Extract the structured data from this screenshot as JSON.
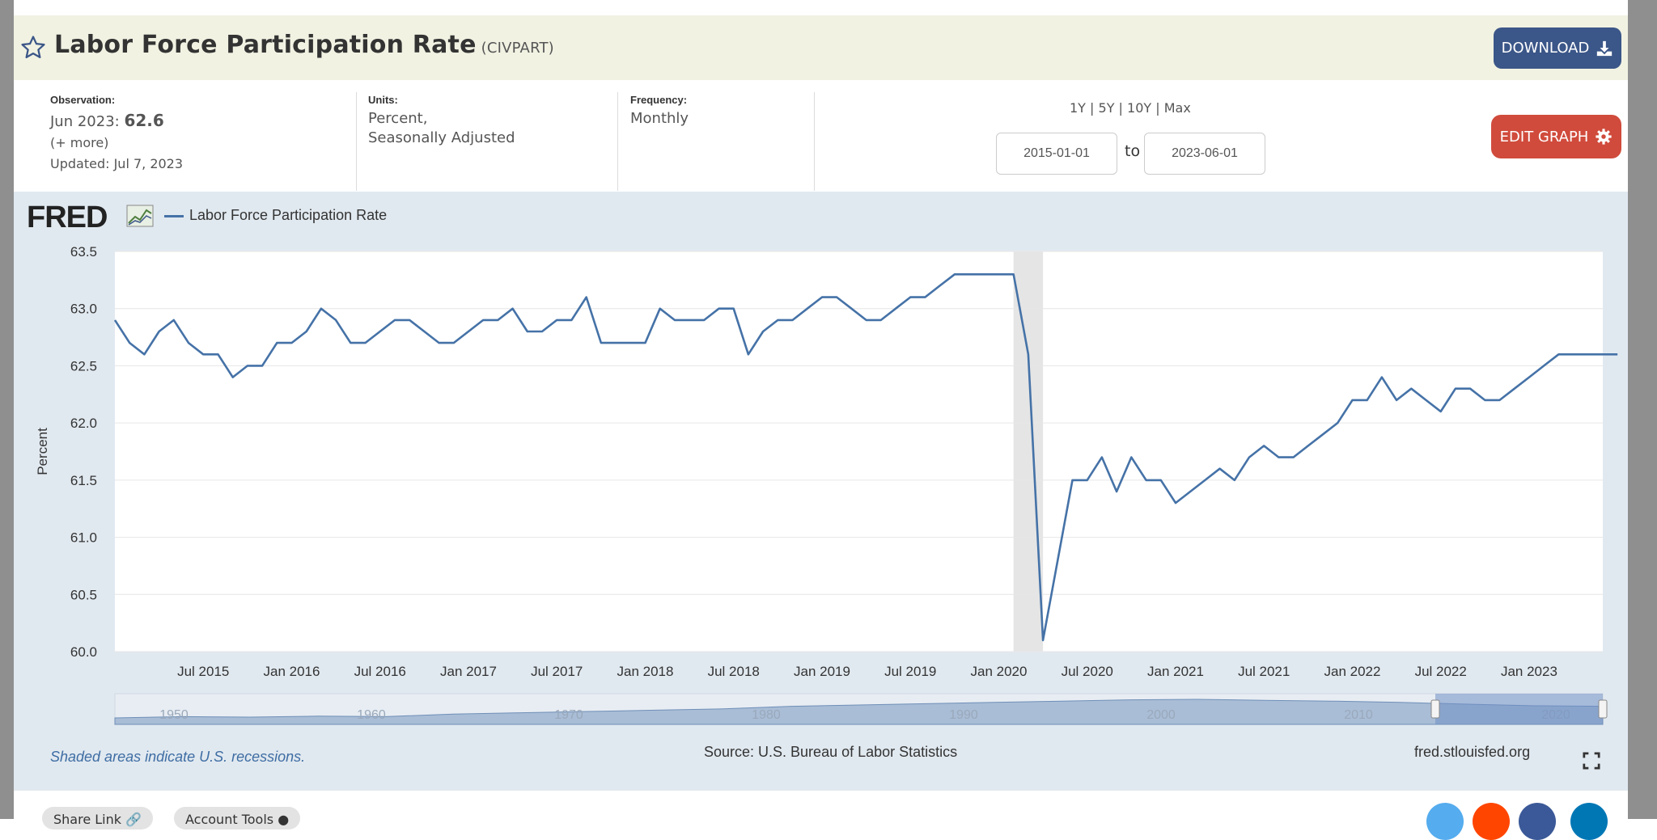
{
  "header": {
    "title": "Labor Force Participation Rate",
    "series_id": "(CIVPART)",
    "download_label": "DOWNLOAD"
  },
  "meta": {
    "observation_label": "Observation:",
    "observation_date": "Jun 2023:",
    "observation_value": "62.6",
    "more_link": "(+ more)",
    "updated": "Updated: Jul 7, 2023",
    "units_label": "Units:",
    "units_line1": "Percent,",
    "units_line2": "Seasonally Adjusted",
    "frequency_label": "Frequency:",
    "frequency_value": "Monthly"
  },
  "range": {
    "links": "1Y | 5Y | 10Y | Max",
    "start_date": "2015-01-01",
    "to_label": "to",
    "end_date": "2023-06-01",
    "edit_label": "EDIT GRAPH"
  },
  "colors": {
    "line": "#4572a7",
    "recession": "#e5e5e5",
    "download_button": "#3b5688",
    "edit_button": "#d04b3c",
    "panel": "#e1e9f0"
  },
  "chart_data": {
    "type": "line",
    "legend": [
      "Labor Force Participation Rate"
    ],
    "ylabel": "Percent",
    "ylim": [
      60.0,
      63.5
    ],
    "yticks": [
      "63.5",
      "63.0",
      "62.5",
      "62.0",
      "61.5",
      "61.0",
      "60.5",
      "60.0"
    ],
    "xlim": [
      "2015-01",
      "2023-06"
    ],
    "xticks": [
      "Jul 2015",
      "Jan 2016",
      "Jul 2016",
      "Jan 2017",
      "Jul 2017",
      "Jan 2018",
      "Jul 2018",
      "Jan 2019",
      "Jul 2019",
      "Jan 2020",
      "Jul 2020",
      "Jan 2021",
      "Jul 2021",
      "Jan 2022",
      "Jul 2022",
      "Jan 2023"
    ],
    "recession": [
      "2020-02",
      "2020-04"
    ],
    "start": "2015-01",
    "series": [
      {
        "name": "Labor Force Participation Rate",
        "values": [
          62.9,
          62.7,
          62.6,
          62.8,
          62.9,
          62.7,
          62.6,
          62.6,
          62.4,
          62.5,
          62.5,
          62.7,
          62.7,
          62.8,
          63.0,
          62.9,
          62.7,
          62.7,
          62.8,
          62.9,
          62.9,
          62.8,
          62.7,
          62.7,
          62.8,
          62.9,
          62.9,
          63.0,
          62.8,
          62.8,
          62.9,
          62.9,
          63.1,
          62.7,
          62.7,
          62.7,
          62.7,
          63.0,
          62.9,
          62.9,
          62.9,
          63.0,
          63.0,
          62.6,
          62.8,
          62.9,
          62.9,
          63.0,
          63.1,
          63.1,
          63.0,
          62.9,
          62.9,
          63.0,
          63.1,
          63.1,
          63.2,
          63.3,
          63.3,
          63.3,
          63.3,
          63.3,
          62.6,
          60.1,
          60.8,
          61.5,
          61.5,
          61.7,
          61.4,
          61.7,
          61.5,
          61.5,
          61.3,
          61.4,
          61.5,
          61.6,
          61.5,
          61.7,
          61.8,
          61.7,
          61.7,
          61.8,
          61.9,
          62.0,
          62.2,
          62.2,
          62.4,
          62.2,
          62.3,
          62.2,
          62.1,
          62.3,
          62.3,
          62.2,
          62.2,
          62.3,
          62.4,
          62.5,
          62.6,
          62.6,
          62.6,
          62.6,
          62.6
        ]
      }
    ],
    "navigator_labels": [
      "1950",
      "1960",
      "1970",
      "1980",
      "1990",
      "2000",
      "2010",
      "2020"
    ]
  },
  "footer": {
    "shaded_note": "Shaded areas indicate U.S. recessions.",
    "source": "Source: U.S. Bureau of Labor Statistics",
    "site": "fred.stlouisfed.org",
    "share_link": "Share Link",
    "account_tools": "Account Tools"
  }
}
